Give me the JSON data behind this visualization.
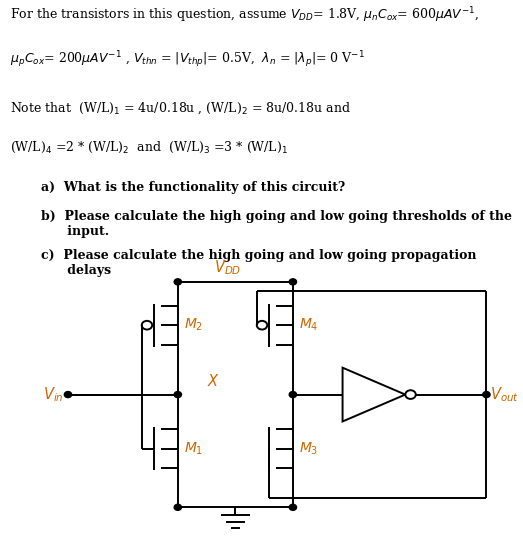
{
  "line1": "For the transistors in this question, assume ",
  "line1b": "= 1.8V, ",
  "line1c": "= 600",
  "line1d": "AV",
  "line2a": "= 200",
  "line2b": "AV",
  "line2c": " , ",
  "line2d": " = |",
  "line2e": "|= 0.5V,  ",
  "line2f": " = |",
  "line2g": "|= 0 V",
  "note1": "Note that  (W/L)",
  "note1b": " = 4u/0.18u , (W/L)",
  "note1c": " = 8u/0.18u and",
  "note2": "(W/L)",
  "note2b": " =2 * (W/L)",
  "note2c": "  and  (W/L)",
  "note2d": " =3 * (W/L)",
  "qa": "a)  What is the functionality of this circuit?",
  "qb1": "b)  Please calculate the high going and low going thresholds of the",
  "qb2": "      input.",
  "qc1": "c)  Please calculate the high going and low going propagation",
  "qc2": "      delays",
  "label_VDD": "$V_{DD}$",
  "label_Vin": "$V_{in}$",
  "label_Vout": "$V_{out}$",
  "label_X": "$X$",
  "label_M1": "$M_1$",
  "label_M2": "$M_2$",
  "label_M3": "$M_3$",
  "label_M4": "$M_4$",
  "orange": "#cc6600",
  "black": "#000000",
  "bg": "#ffffff"
}
